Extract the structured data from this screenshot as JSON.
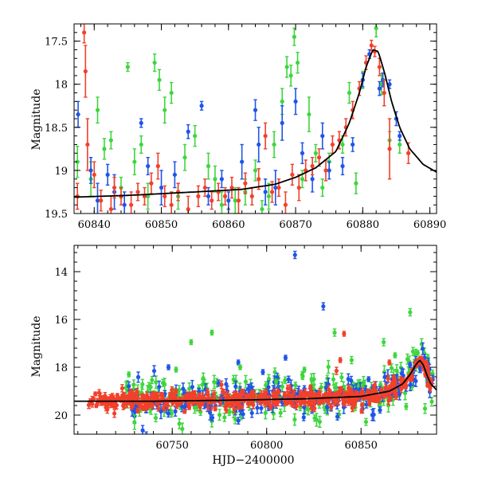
{
  "chart_data": [
    {
      "type": "scatter",
      "ylabel": "Magnitude",
      "xlabel": "",
      "xlim": [
        60837,
        60891
      ],
      "ylim": [
        19.5,
        17.3
      ],
      "y_inverted": true,
      "xticks": [
        60840,
        60850,
        60860,
        60870,
        60880,
        60890
      ],
      "yticks": [
        17.5,
        18,
        18.5,
        19,
        19.5
      ],
      "xtick_labels": [
        "60840",
        "60850",
        "60860",
        "60870",
        "60880",
        "60890"
      ],
      "ytick_labels": [
        "17.5",
        "18",
        "18.5",
        "19",
        "19.5"
      ],
      "model_curve": {
        "color": "#000000",
        "points": [
          [
            60837,
            19.31
          ],
          [
            60845,
            19.29
          ],
          [
            60855,
            19.25
          ],
          [
            60862,
            19.22
          ],
          [
            60867,
            19.16
          ],
          [
            60870,
            19.08
          ],
          [
            60873,
            18.97
          ],
          [
            60876,
            18.78
          ],
          [
            60878,
            18.45
          ],
          [
            60879.5,
            18.1
          ],
          [
            60880.5,
            17.8
          ],
          [
            60881.5,
            17.6
          ],
          [
            60882.3,
            17.62
          ],
          [
            60883.3,
            17.88
          ],
          [
            60884.3,
            18.2
          ],
          [
            60885.5,
            18.5
          ],
          [
            60887,
            18.75
          ],
          [
            60889,
            18.93
          ],
          [
            60891,
            19.02
          ]
        ]
      },
      "series": [
        {
          "color": "#3ed63e",
          "points": [
            [
              60837.5,
              18.9,
              0.18
            ],
            [
              60839.5,
              19.1,
              0.2
            ],
            [
              60840.5,
              18.3,
              0.15
            ],
            [
              60841.5,
              18.75,
              0.12
            ],
            [
              60842.5,
              18.65,
              0.1
            ],
            [
              60844,
              19.2,
              0.12
            ],
            [
              60845,
              17.8,
              0.05
            ],
            [
              60846,
              18.9,
              0.15
            ],
            [
              60847,
              18.7,
              0.1
            ],
            [
              60848,
              19.3,
              0.15
            ],
            [
              60849,
              17.75,
              0.1
            ],
            [
              60849.7,
              17.95,
              0.12
            ],
            [
              60850.5,
              18.3,
              0.15
            ],
            [
              60851.5,
              18.1,
              0.12
            ],
            [
              60852.5,
              19.3,
              0.15
            ],
            [
              60853.5,
              18.85,
              0.15
            ],
            [
              60855,
              18.6,
              0.12
            ],
            [
              60857,
              18.95,
              0.15
            ],
            [
              60858,
              19.1,
              0.15
            ],
            [
              60859,
              19.4,
              0.15
            ],
            [
              60861,
              19.35,
              0.15
            ],
            [
              60862.5,
              19.25,
              0.15
            ],
            [
              60864,
              19.0,
              0.12
            ],
            [
              60865,
              19.45,
              0.1
            ],
            [
              60866,
              19.3,
              0.15
            ],
            [
              60866.8,
              18.7,
              0.15
            ],
            [
              60868,
              18.2,
              0.15
            ],
            [
              60868.7,
              17.8,
              0.12
            ],
            [
              60869.3,
              17.9,
              0.12
            ],
            [
              60869.8,
              17.45,
              0.1
            ],
            [
              60870.3,
              17.75,
              0.12
            ],
            [
              60871,
              19.1,
              0.1
            ],
            [
              60872,
              18.35,
              0.2
            ],
            [
              60873,
              18.8,
              0.1
            ],
            [
              60874,
              19.2,
              0.1
            ],
            [
              60875,
              18.9,
              0.1
            ],
            [
              60877,
              18.7,
              0.1
            ],
            [
              60878,
              18.1,
              0.12
            ],
            [
              60879,
              19.15,
              0.12
            ],
            [
              60880,
              17.95,
              0.1
            ],
            [
              60882,
              17.35,
              0.1
            ],
            [
              60882.8,
              18.0,
              0.12
            ],
            [
              60884,
              18.65,
              0.1
            ],
            [
              60885.5,
              18.7,
              0.1
            ]
          ]
        },
        {
          "color": "#1f55e8",
          "points": [
            [
              60837.6,
              18.35,
              0.15
            ],
            [
              60839.5,
              19.0,
              0.15
            ],
            [
              60840.5,
              19.35,
              0.2
            ],
            [
              60842,
              19.05,
              0.12
            ],
            [
              60843,
              19.25,
              0.2
            ],
            [
              60844.5,
              19.4,
              0.15
            ],
            [
              60847,
              18.45,
              0.05
            ],
            [
              60848,
              18.95,
              0.1
            ],
            [
              60850,
              19.2,
              0.2
            ],
            [
              60852,
              19.05,
              0.15
            ],
            [
              60854,
              18.55,
              0.08
            ],
            [
              60856,
              18.25,
              0.05
            ],
            [
              60857,
              19.3,
              0.1
            ],
            [
              60859,
              19.1,
              0.1
            ],
            [
              60860,
              19.35,
              0.1
            ],
            [
              60862,
              18.9,
              0.2
            ],
            [
              60864,
              18.3,
              0.12
            ],
            [
              60864.5,
              18.7,
              0.2
            ],
            [
              60865.5,
              19.25,
              0.15
            ],
            [
              60867,
              19.2,
              0.2
            ],
            [
              60868,
              18.45,
              0.2
            ],
            [
              60870,
              18.2,
              0.15
            ],
            [
              60871,
              18.8,
              0.12
            ],
            [
              60872.5,
              19.1,
              0.15
            ],
            [
              60874,
              18.6,
              0.15
            ],
            [
              60875,
              19.0,
              0.1
            ],
            [
              60877,
              18.95,
              0.1
            ],
            [
              60878.5,
              18.7,
              0.08
            ],
            [
              60880,
              17.95,
              0.08
            ],
            [
              60881,
              17.65,
              0.05
            ],
            [
              60883,
              17.95,
              0.08
            ],
            [
              60884,
              18.0,
              0.05
            ],
            [
              60885,
              18.4,
              0.08
            ],
            [
              60885.5,
              18.6,
              0.05
            ],
            [
              60882.5,
              18.05,
              0.08
            ]
          ]
        },
        {
          "color": "#f2402b",
          "points": [
            [
              60837.5,
              19.3,
              0.15
            ],
            [
              60838.5,
              17.4,
              0.12
            ],
            [
              60838.7,
              17.85,
              0.3
            ],
            [
              60839,
              18.7,
              0.3
            ],
            [
              60840,
              19.05,
              0.15
            ],
            [
              60841,
              19.35,
              0.12
            ],
            [
              60842.5,
              19.45,
              0.15
            ],
            [
              60843,
              19.2,
              0.12
            ],
            [
              60844,
              19.3,
              0.1
            ],
            [
              60845.5,
              19.4,
              0.15
            ],
            [
              60846.5,
              19.25,
              0.1
            ],
            [
              60847.5,
              19.3,
              0.1
            ],
            [
              60848.5,
              19.15,
              0.12
            ],
            [
              60849.5,
              18.95,
              0.15
            ],
            [
              60850.5,
              19.3,
              0.12
            ],
            [
              60851.5,
              19.4,
              0.15
            ],
            [
              60852.5,
              19.25,
              0.1
            ],
            [
              60854,
              19.45,
              0.15
            ],
            [
              60855.5,
              19.3,
              0.12
            ],
            [
              60856.5,
              19.2,
              0.1
            ],
            [
              60857.5,
              19.35,
              0.1
            ],
            [
              60858.5,
              19.25,
              0.1
            ],
            [
              60859.5,
              19.3,
              0.1
            ],
            [
              60860.5,
              19.2,
              0.12
            ],
            [
              60861.5,
              19.35,
              0.15
            ],
            [
              60862.5,
              19.15,
              0.12
            ],
            [
              60863.5,
              19.3,
              0.1
            ],
            [
              60864.5,
              19.1,
              0.12
            ],
            [
              60865.5,
              18.6,
              0.15
            ],
            [
              60866.5,
              19.25,
              0.12
            ],
            [
              60867.5,
              19.2,
              0.1
            ],
            [
              60868.5,
              19.4,
              0.15
            ],
            [
              60869.5,
              19.05,
              0.12
            ],
            [
              60870.5,
              19.2,
              0.15
            ],
            [
              60871.5,
              19.0,
              0.12
            ],
            [
              60872.5,
              18.95,
              0.1
            ],
            [
              60873.5,
              18.85,
              0.1
            ],
            [
              60874.5,
              19.0,
              0.12
            ],
            [
              60875.5,
              18.7,
              0.1
            ],
            [
              60876.5,
              18.65,
              0.1
            ],
            [
              60877.5,
              18.5,
              0.1
            ],
            [
              60878.5,
              18.3,
              0.1
            ],
            [
              60879.5,
              18.05,
              0.08
            ],
            [
              60880.5,
              17.75,
              0.08
            ],
            [
              60881.3,
              17.55,
              0.06
            ],
            [
              60881.8,
              17.62,
              0.06
            ],
            [
              60882.5,
              17.8,
              0.1
            ],
            [
              60883.2,
              18.1,
              0.15
            ],
            [
              60884,
              18.75,
              0.35
            ],
            [
              60886.8,
              18.8,
              0.12
            ]
          ]
        }
      ]
    },
    {
      "type": "scatter",
      "ylabel": "Magnitude",
      "xlabel": "HJD−2400000",
      "xlim": [
        60698,
        60890
      ],
      "ylim": [
        20.8,
        12.9
      ],
      "y_inverted": true,
      "xticks": [
        60750,
        60800,
        60850
      ],
      "yticks": [
        14,
        16,
        18,
        20
      ],
      "xtick_labels": [
        "60750",
        "60800",
        "60850"
      ],
      "ytick_labels": [
        "14",
        "16",
        "18",
        "20"
      ],
      "model_curve": {
        "color": "#000000",
        "points": [
          [
            60700,
            19.42
          ],
          [
            60740,
            19.42
          ],
          [
            60780,
            19.38
          ],
          [
            60820,
            19.32
          ],
          [
            60850,
            19.22
          ],
          [
            60865,
            19.0
          ],
          [
            60872,
            18.7
          ],
          [
            60876,
            18.3
          ],
          [
            60879,
            17.9
          ],
          [
            60881,
            17.7
          ],
          [
            60883,
            17.9
          ],
          [
            60885,
            18.35
          ],
          [
            60887,
            18.7
          ],
          [
            60890,
            18.95
          ]
        ]
      },
      "highlights": [
        {
          "color": "#1f55e8",
          "points": [
            [
              60815,
              13.3,
              0.15
            ],
            [
              60830,
              15.45,
              0.15
            ],
            [
              60810,
              17.6,
              0.1
            ],
            [
              60785,
              17.8,
              0.1
            ],
            [
              60748,
              18.0,
              0.1
            ],
            [
              60798,
              18.2,
              0.1
            ],
            [
              60854,
              18.5,
              0.1
            ],
            [
              60876,
              17.9,
              0.1
            ],
            [
              60770,
              19.9,
              0.3
            ],
            [
              60744,
              19.85,
              0.3
            ],
            [
              60730,
              20.05,
              0.3
            ]
          ]
        },
        {
          "color": "#3ed63e",
          "points": [
            [
              60876,
              15.7,
              0.15
            ],
            [
              60836,
              16.55,
              0.15
            ],
            [
              60862,
              16.95,
              0.15
            ],
            [
              60771,
              16.55,
              0.1
            ],
            [
              60760,
              16.95,
              0.1
            ],
            [
              60727,
              18.3,
              0.1
            ],
            [
              60730,
              20.3,
              0.3
            ],
            [
              60845,
              17.7,
              0.15
            ],
            [
              60868,
              17.5,
              0.1
            ],
            [
              60880,
              17.4,
              0.1
            ],
            [
              60820,
              18.1,
              0.1
            ],
            [
              60786,
              18.0,
              0.1
            ],
            [
              60752,
              18.1,
              0.1
            ],
            [
              60805,
              18.6,
              0.1
            ]
          ]
        },
        {
          "color": "#f2402b",
          "points": [
            [
              60841,
              16.6,
              0.1
            ],
            [
              60839,
              17.7,
              0.1
            ],
            [
              60837,
              18.15,
              0.15
            ],
            [
              60865,
              17.8,
              0.1
            ],
            [
              60881,
              17.65,
              0.08
            ],
            [
              60884,
              18.3,
              0.1
            ],
            [
              60887,
              18.65,
              0.15
            ]
          ]
        }
      ],
      "series": [
        {
          "color": "#3ed63e",
          "generator": {
            "seed": 7,
            "count": 240,
            "x_range": [
              60725,
              60888
            ],
            "sigma": 0.45,
            "err": 0.2
          }
        },
        {
          "color": "#1f55e8",
          "generator": {
            "seed": 11,
            "count": 200,
            "x_range": [
              60725,
              60888
            ],
            "sigma": 0.4,
            "err": 0.2
          }
        },
        {
          "color": "#f2402b",
          "generator": {
            "seed": 23,
            "count": 520,
            "x_range": [
              60705,
              60888
            ],
            "sigma": 0.18,
            "err": 0.12
          }
        }
      ]
    }
  ]
}
